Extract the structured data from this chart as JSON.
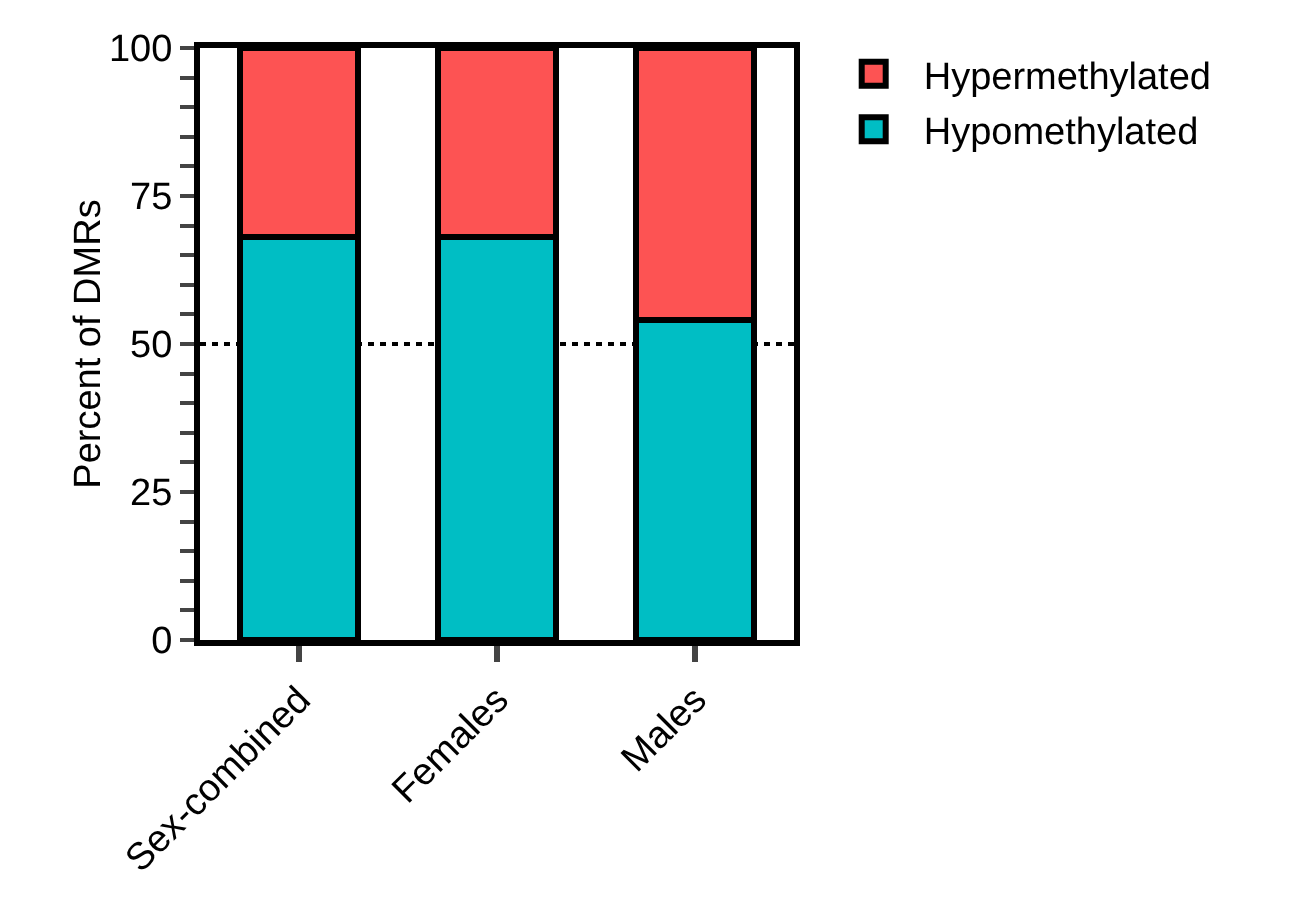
{
  "chart_data": {
    "type": "bar",
    "stacked": true,
    "categories": [
      "Sex-combined",
      "Females",
      "Males"
    ],
    "ylabel": "Percent of DMRs",
    "ylim": [
      0,
      100
    ],
    "yticks": [
      0,
      {
        "value": 5,
        "label": null
      },
      {
        "value": 10,
        "label": null
      },
      {
        "value": 15,
        "label": null
      },
      {
        "value": 20,
        "label": null
      },
      25,
      {
        "value": 30,
        "label": null
      },
      {
        "value": 35,
        "label": null
      },
      {
        "value": 40,
        "label": null
      },
      {
        "value": 45,
        "label": null
      },
      50,
      {
        "value": 55,
        "label": null
      },
      {
        "value": 60,
        "label": null
      },
      {
        "value": 65,
        "label": null
      },
      {
        "value": 70,
        "label": null
      },
      75,
      {
        "value": 80,
        "label": null
      },
      {
        "value": 85,
        "label": null
      },
      {
        "value": 90,
        "label": null
      },
      {
        "value": 95,
        "label": null
      },
      100
    ],
    "series": [
      {
        "name": "Hypomethylated",
        "color": "#00bec4",
        "values": [
          68,
          68,
          54
        ]
      },
      {
        "name": "Hypermethylated",
        "color": "#fd5353",
        "values": [
          32,
          32,
          46
        ]
      }
    ],
    "ref_lines": [
      {
        "axis": "y",
        "value": 50,
        "line_style": "dotted",
        "color": "#000000"
      }
    ],
    "grid": false,
    "legend": "top right"
  }
}
